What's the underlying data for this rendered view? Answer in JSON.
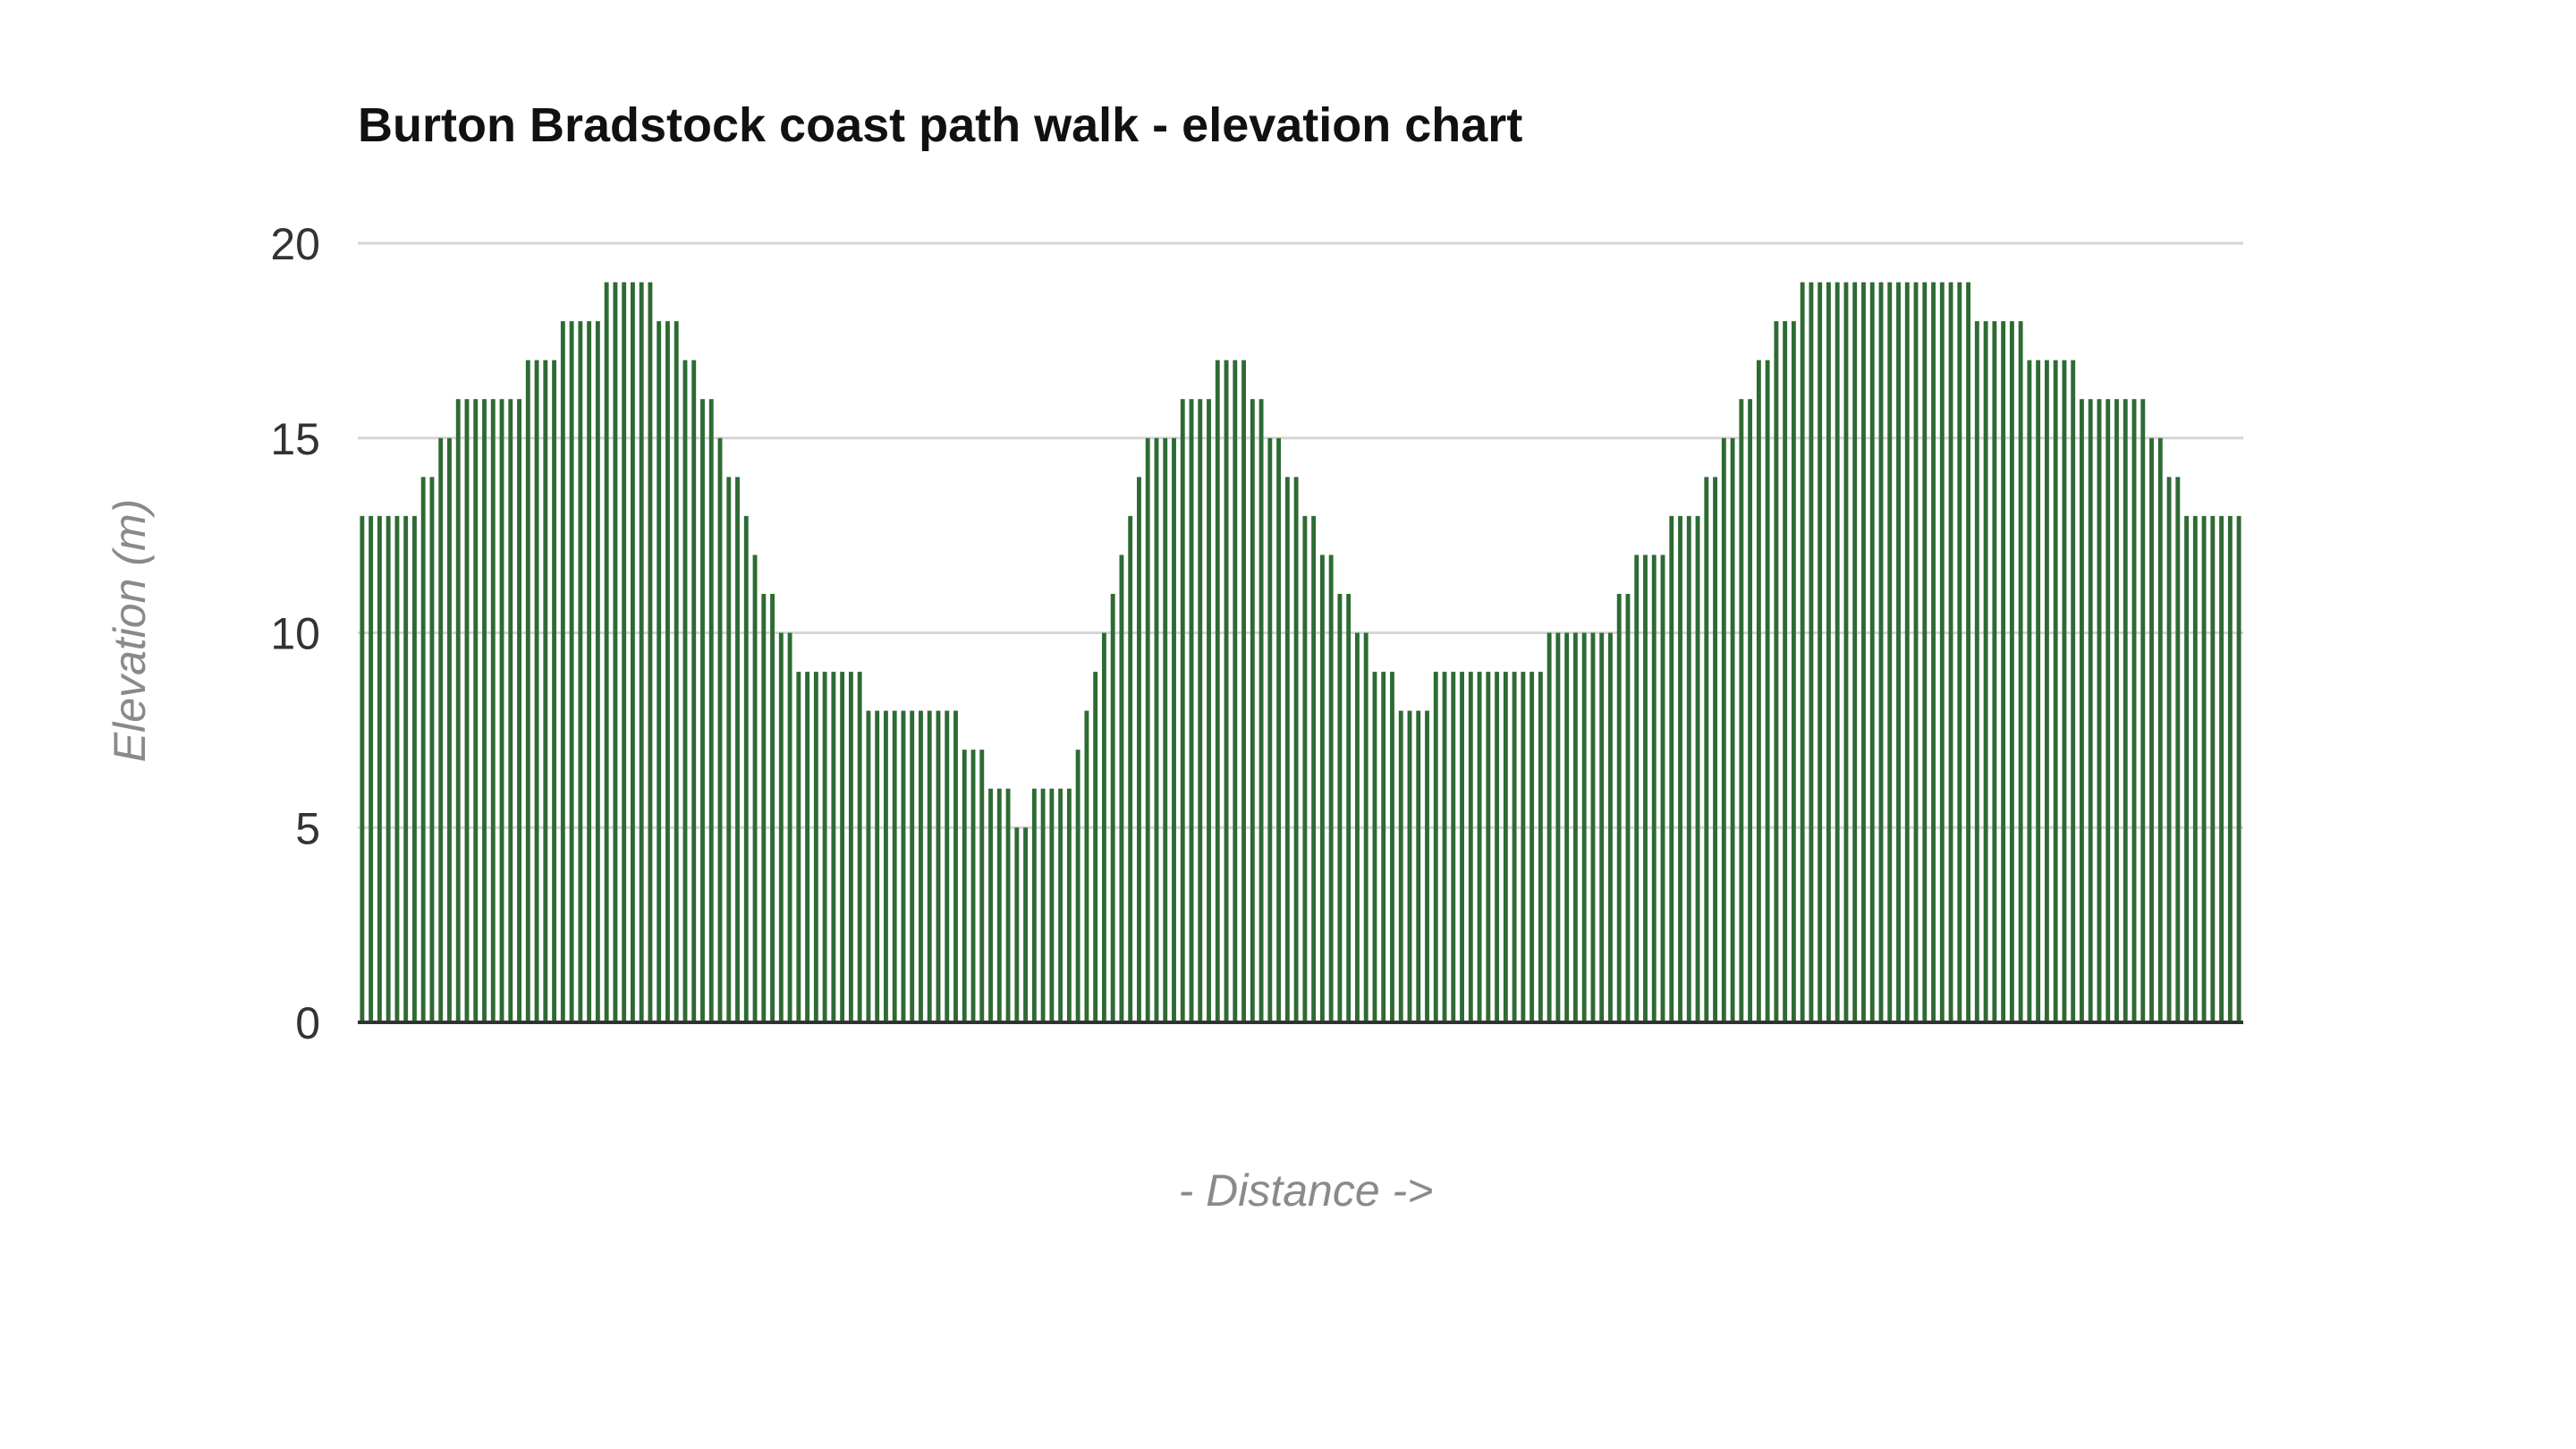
{
  "chart_data": {
    "type": "bar",
    "title": "Burton Bradstock coast path walk - elevation chart",
    "xlabel": "- Distance ->",
    "ylabel": "Elevation (m)",
    "ylim": [
      0,
      20
    ],
    "yticks": [
      0,
      5,
      10,
      15,
      20
    ],
    "grid": true,
    "legend": "none",
    "bar_color": "#2e6b33",
    "values": [
      13,
      13,
      13,
      13,
      13,
      13,
      13,
      14,
      14,
      15,
      15,
      16,
      16,
      16,
      16,
      16,
      16,
      16,
      16,
      17,
      17,
      17,
      17,
      18,
      18,
      18,
      18,
      18,
      19,
      19,
      19,
      19,
      19,
      19,
      18,
      18,
      18,
      17,
      17,
      16,
      16,
      15,
      14,
      14,
      13,
      12,
      11,
      11,
      10,
      10,
      9,
      9,
      9,
      9,
      9,
      9,
      9,
      9,
      8,
      8,
      8,
      8,
      8,
      8,
      8,
      8,
      8,
      8,
      8,
      7,
      7,
      7,
      6,
      6,
      6,
      5,
      5,
      6,
      6,
      6,
      6,
      6,
      7,
      8,
      9,
      10,
      11,
      12,
      13,
      14,
      15,
      15,
      15,
      15,
      16,
      16,
      16,
      16,
      17,
      17,
      17,
      17,
      16,
      16,
      15,
      15,
      14,
      14,
      13,
      13,
      12,
      12,
      11,
      11,
      10,
      10,
      9,
      9,
      9,
      8,
      8,
      8,
      8,
      9,
      9,
      9,
      9,
      9,
      9,
      9,
      9,
      9,
      9,
      9,
      9,
      9,
      10,
      10,
      10,
      10,
      10,
      10,
      10,
      10,
      11,
      11,
      12,
      12,
      12,
      12,
      13,
      13,
      13,
      13,
      14,
      14,
      15,
      15,
      16,
      16,
      17,
      17,
      18,
      18,
      18,
      19,
      19,
      19,
      19,
      19,
      19,
      19,
      19,
      19,
      19,
      19,
      19,
      19,
      19,
      19,
      19,
      19,
      19,
      19,
      19,
      18,
      18,
      18,
      18,
      18,
      18,
      17,
      17,
      17,
      17,
      17,
      17,
      16,
      16,
      16,
      16,
      16,
      16,
      16,
      16,
      15,
      15,
      14,
      14,
      13,
      13,
      13,
      13,
      13,
      13,
      13
    ]
  }
}
